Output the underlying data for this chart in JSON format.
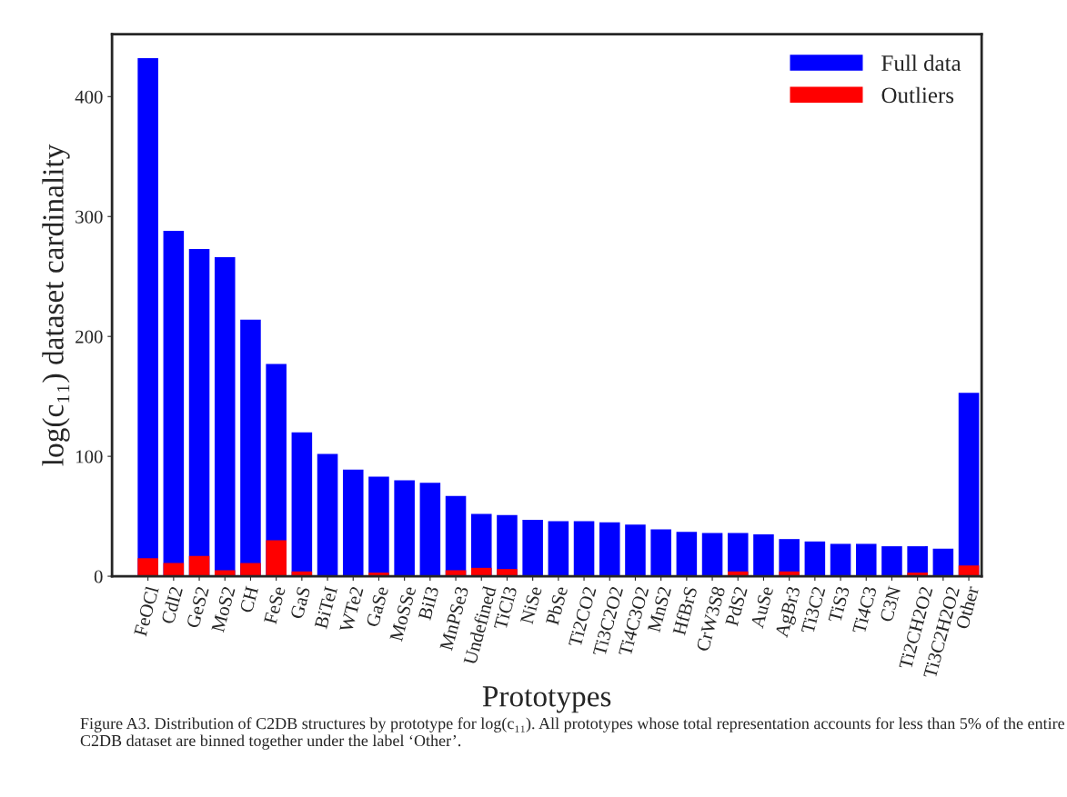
{
  "chart_data": {
    "type": "bar",
    "xlabel": "Prototypes",
    "ylabel": "log(c₁₁) dataset cardinality",
    "categories": [
      "FeOCl",
      "CdI2",
      "GeS2",
      "MoS2",
      "CH",
      "FeSe",
      "GaS",
      "BiTeI",
      "WTe2",
      "GaSe",
      "MoSSe",
      "BiI3",
      "MnPSe3",
      "Undefined",
      "TiCl3",
      "NiSe",
      "PbSe",
      "Ti2CO2",
      "Ti3C2O2",
      "Ti4C3O2",
      "MnS2",
      "HfBrS",
      "CrW3S8",
      "PdS2",
      "AuSe",
      "AgBr3",
      "Ti3C2",
      "TiS3",
      "Ti4C3",
      "C3N",
      "Ti2CH2O2",
      "Ti3C2H2O2",
      "Other"
    ],
    "series": [
      {
        "name": "Full data",
        "color": "#0000ff",
        "values": [
          432,
          288,
          273,
          266,
          214,
          177,
          120,
          102,
          89,
          83,
          80,
          78,
          67,
          52,
          51,
          47,
          46,
          46,
          45,
          43,
          39,
          37,
          36,
          36,
          35,
          31,
          29,
          27,
          27,
          25,
          25,
          23,
          153
        ]
      },
      {
        "name": "Outliers",
        "color": "#ff0000",
        "values": [
          15,
          11,
          17,
          5,
          11,
          30,
          4,
          0,
          0,
          3,
          0,
          0,
          5,
          7,
          6,
          0,
          0,
          0,
          0,
          0,
          0,
          0,
          0,
          4,
          0,
          4,
          0,
          0,
          0,
          0,
          3,
          0,
          9
        ]
      }
    ],
    "ylim": [
      0,
      452
    ],
    "yticks": [
      0,
      100,
      200,
      300,
      400
    ],
    "grid": false,
    "legend": "top right",
    "annotations": [
      "Figure A3. Distribution of C2DB structures by prototype for log(c₁₁). All prototypes whose total representation accounts for less than 5% of the entire C2DB dataset are binned together under the label ‘Other’."
    ]
  }
}
